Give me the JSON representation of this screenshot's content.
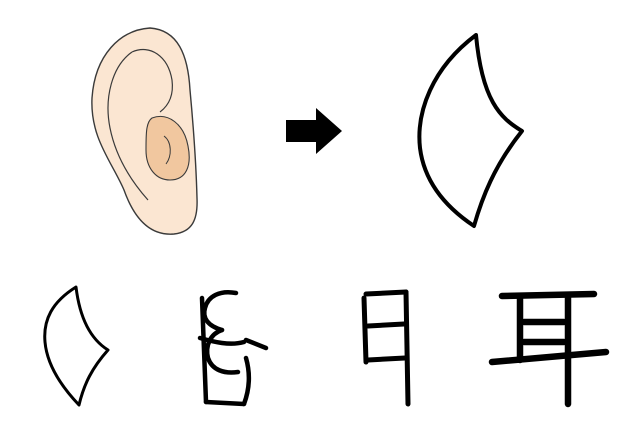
{
  "diagram": {
    "colors": {
      "background": "#ffffff",
      "stroke": "#000000",
      "ear_skin": "#fbe6d2",
      "ear_inner": "#f1c79f",
      "ear_outline": "#3a3a3a"
    },
    "top_row": {
      "picture": "ear-drawing",
      "arrow": "right-arrow-icon",
      "result": "ear-pictograph-shape"
    },
    "bottom_row": {
      "stages": [
        "ear-character-stage-1",
        "ear-character-stage-2",
        "ear-character-stage-3",
        "ear-character-stage-4"
      ]
    }
  }
}
